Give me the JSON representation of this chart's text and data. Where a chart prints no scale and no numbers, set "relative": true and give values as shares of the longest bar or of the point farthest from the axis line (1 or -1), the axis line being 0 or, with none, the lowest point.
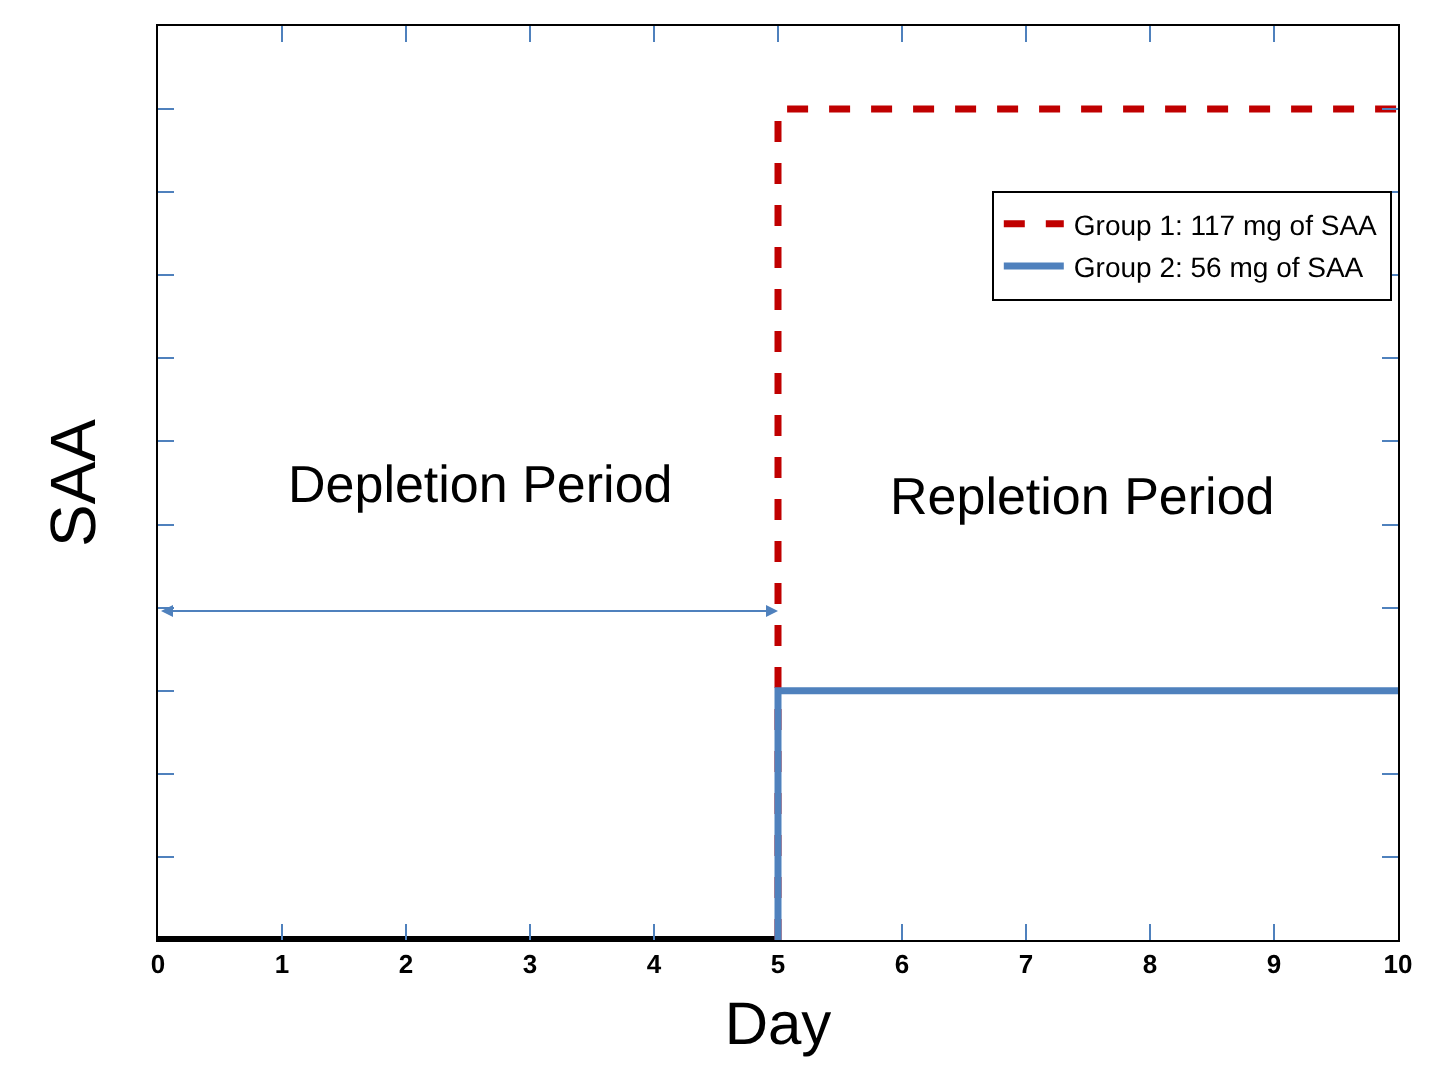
{
  "chart_data": {
    "type": "line",
    "relative": true,
    "xlabel": "Day",
    "ylabel": "SAA",
    "xlim": [
      0,
      10
    ],
    "xticks": [
      0,
      1,
      2,
      3,
      4,
      5,
      6,
      7,
      8,
      9,
      10
    ],
    "legend": "top right",
    "marker": "none",
    "series": [
      {
        "x": [
          0,
          5
        ],
        "values": [
          0,
          0
        ],
        "color": "#000000",
        "line_style": "solid"
      },
      {
        "name": "Group 1: 117 mg of SAA",
        "x": [
          5,
          5,
          10
        ],
        "values": [
          0,
          1,
          1
        ],
        "color": "#c00000",
        "line_style": "dashed"
      },
      {
        "name": "Group 2: 56 mg of SAA",
        "x": [
          5,
          5,
          10
        ],
        "values": [
          0,
          0.3,
          0.3
        ],
        "color": "#4f81bd",
        "line_style": "solid"
      }
    ],
    "annotations": [
      "Depletion Period",
      "Repletion Period"
    ]
  }
}
